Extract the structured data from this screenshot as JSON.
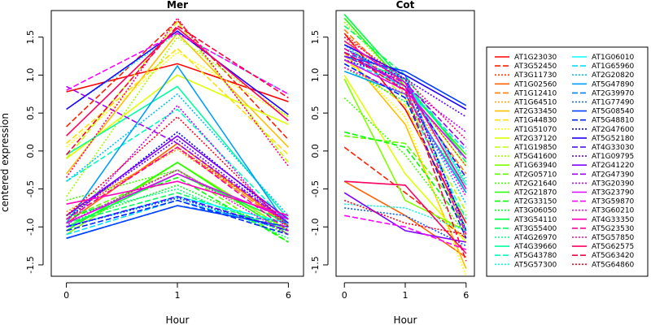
{
  "chart_data": {
    "type": "line",
    "ylabel": "centered expression",
    "xlabel": "Hour",
    "x": [
      "0",
      "1",
      "6"
    ],
    "yticks": [
      -1.5,
      -1.0,
      -0.5,
      0.0,
      0.5,
      1.0,
      1.5
    ],
    "ylim": [
      -1.65,
      1.85
    ],
    "grid": false,
    "legend_position": "right",
    "panels": [
      {
        "title": "Mer",
        "series": [
          {
            "name": "AT1G23030",
            "values": [
              0.78,
              1.15,
              0.65
            ]
          },
          {
            "name": "AT3G52450",
            "values": [
              0.32,
              1.72,
              0.15
            ]
          },
          {
            "name": "AT3G11730",
            "values": [
              -0.85,
              0.05,
              -0.95
            ]
          },
          {
            "name": "AT1G02560",
            "values": [
              -0.95,
              0.1,
              -0.98
            ]
          },
          {
            "name": "AT1G12410",
            "values": [
              -0.9,
              0.05,
              -1.0
            ]
          },
          {
            "name": "AT1G64510",
            "values": [
              -0.8,
              0.02,
              -0.98
            ]
          },
          {
            "name": "AT2G33450",
            "values": [
              -0.3,
              1.55,
              0.05
            ]
          },
          {
            "name": "AT1G44830",
            "values": [
              0.1,
              1.35,
              -0.05
            ]
          },
          {
            "name": "AT1G51070",
            "values": [
              0.05,
              1.3,
              0.45
            ]
          },
          {
            "name": "AT2G37120",
            "values": [
              -0.1,
              1.0,
              0.35
            ]
          },
          {
            "name": "AT1G19850",
            "values": [
              -0.1,
              1.7,
              -0.15
            ]
          },
          {
            "name": "AT5G41600",
            "values": [
              -0.6,
              1.5,
              0.45
            ]
          },
          {
            "name": "AT1G63940",
            "values": [
              -1.1,
              -0.15,
              -1.05
            ]
          },
          {
            "name": "AT2G05710",
            "values": [
              -0.9,
              -0.25,
              -1.2
            ]
          },
          {
            "name": "AT2G21640",
            "values": [
              -0.65,
              -0.25,
              -1.05
            ]
          },
          {
            "name": "AT2G21870",
            "values": [
              -1.05,
              -0.15,
              -1.1
            ]
          },
          {
            "name": "AT2G33150",
            "values": [
              -0.9,
              -0.35,
              -1.2
            ]
          },
          {
            "name": "AT3G06050",
            "values": [
              -0.95,
              -0.45,
              -1.1
            ]
          },
          {
            "name": "AT3G54110",
            "values": [
              -1.0,
              -0.3,
              -0.95
            ]
          },
          {
            "name": "AT3G55400",
            "values": [
              -0.95,
              -0.55,
              -1.05
            ]
          },
          {
            "name": "AT4G26970",
            "values": [
              -0.85,
              -0.5,
              -1.15
            ]
          },
          {
            "name": "AT4G39660",
            "values": [
              -0.05,
              0.85,
              -0.9
            ]
          },
          {
            "name": "AT5G43780",
            "values": [
              -0.4,
              0.55,
              -0.95
            ]
          },
          {
            "name": "AT5G57300",
            "values": [
              0.55,
              1.55,
              0.75
            ]
          },
          {
            "name": "AT1G06010",
            "values": [
              -1.0,
              -0.6,
              -0.95
            ]
          },
          {
            "name": "AT1G65960",
            "values": [
              -1.1,
              -0.65,
              -1.05
            ]
          },
          {
            "name": "AT2G20820",
            "values": [
              -0.4,
              0.75,
              -0.85
            ]
          },
          {
            "name": "AT5G47890",
            "values": [
              -0.95,
              1.12,
              -1.0
            ]
          },
          {
            "name": "AT2G39970",
            "values": [
              -1.15,
              -0.72,
              -0.95
            ]
          },
          {
            "name": "AT1G77490",
            "values": [
              -1.0,
              -0.62,
              -1.05
            ]
          },
          {
            "name": "AT5G08540",
            "values": [
              -1.15,
              -0.72,
              -1.0
            ]
          },
          {
            "name": "AT5G48810",
            "values": [
              -1.05,
              -0.65,
              -1.1
            ]
          },
          {
            "name": "AT2G47600",
            "values": [
              -0.9,
              0.25,
              -0.95
            ]
          },
          {
            "name": "AT5G52180",
            "values": [
              0.55,
              1.58,
              0.48
            ]
          },
          {
            "name": "AT4G33030",
            "values": [
              -1.0,
              -0.6,
              -1.05
            ]
          },
          {
            "name": "AT1G09795",
            "values": [
              -0.85,
              0.15,
              -0.95
            ]
          },
          {
            "name": "AT2G41220",
            "values": [
              -0.85,
              0.2,
              -0.9
            ]
          },
          {
            "name": "AT2G47390",
            "values": [
              0.85,
              0.1,
              -0.95
            ]
          },
          {
            "name": "AT3G20390",
            "values": [
              -1.0,
              0.6,
              -1.05
            ]
          },
          {
            "name": "AT3G23790",
            "values": [
              -0.95,
              -0.3,
              -0.9
            ]
          },
          {
            "name": "AT3G59870",
            "values": [
              0.8,
              1.55,
              0.75
            ]
          },
          {
            "name": "AT3G60210",
            "values": [
              -0.95,
              -0.25,
              -1.1
            ]
          },
          {
            "name": "AT4G33350",
            "values": [
              -0.7,
              -0.4,
              -0.85
            ]
          },
          {
            "name": "AT5G23530",
            "values": [
              -0.9,
              0.05,
              -1.05
            ]
          },
          {
            "name": "AT5G57850",
            "values": [
              -0.35,
              1.75,
              -0.2
            ]
          },
          {
            "name": "AT5G62575",
            "values": [
              0.2,
              1.62,
              0.4
            ]
          },
          {
            "name": "AT5G63420",
            "values": [
              -0.05,
              1.65,
              0.7
            ]
          },
          {
            "name": "AT5G64860",
            "values": [
              -0.85,
              0.45,
              -1.0
            ]
          }
        ]
      },
      {
        "title": "Cot",
        "series": [
          {
            "name": "AT1G23030",
            "values": [
              1.55,
              0.55,
              -0.95
            ]
          },
          {
            "name": "AT3G52450",
            "values": [
              0.05,
              -0.55,
              -1.15
            ]
          },
          {
            "name": "AT3G11730",
            "values": [
              1.55,
              0.85,
              -0.2
            ]
          },
          {
            "name": "AT1G02560",
            "values": [
              -0.4,
              -0.85,
              -1.4
            ]
          },
          {
            "name": "AT1G12410",
            "values": [
              1.6,
              0.8,
              -0.3
            ]
          },
          {
            "name": "AT1G64510",
            "values": [
              1.5,
              0.75,
              -0.4
            ]
          },
          {
            "name": "AT2G33450",
            "values": [
              1.3,
              0.35,
              -1.55
            ]
          },
          {
            "name": "AT1G44830",
            "values": [
              1.2,
              0.6,
              -1.05
            ]
          },
          {
            "name": "AT1G51070",
            "values": [
              1.25,
              0.45,
              -1.65
            ]
          },
          {
            "name": "AT2G37120",
            "values": [
              1.0,
              -0.3,
              -1.2
            ]
          },
          {
            "name": "AT1G19850",
            "values": [
              1.45,
              0.7,
              -0.8
            ]
          },
          {
            "name": "AT5G41600",
            "values": [
              1.7,
              0.85,
              -0.2
            ]
          },
          {
            "name": "AT1G63940",
            "values": [
              0.95,
              -0.65,
              -1.05
            ]
          },
          {
            "name": "AT2G05710",
            "values": [
              0.2,
              0.1,
              -0.85
            ]
          },
          {
            "name": "AT2G21640",
            "values": [
              0.7,
              -0.05,
              -1.1
            ]
          },
          {
            "name": "AT2G21870",
            "values": [
              1.75,
              0.85,
              -0.05
            ]
          },
          {
            "name": "AT2G33150",
            "values": [
              0.25,
              0.05,
              -1.0
            ]
          },
          {
            "name": "AT3G06050",
            "values": [
              1.1,
              0.65,
              -0.45
            ]
          },
          {
            "name": "AT3G54110",
            "values": [
              1.8,
              0.9,
              -0.1
            ]
          },
          {
            "name": "AT3G55400",
            "values": [
              1.65,
              1.0,
              -0.15
            ]
          },
          {
            "name": "AT4G26970",
            "values": [
              1.45,
              0.9,
              -0.4
            ]
          },
          {
            "name": "AT4G39660",
            "values": [
              1.25,
              0.95,
              -0.55
            ]
          },
          {
            "name": "AT5G43780",
            "values": [
              1.15,
              0.7,
              -0.9
            ]
          },
          {
            "name": "AT5G57300",
            "values": [
              -0.7,
              -0.75,
              -1.05
            ]
          },
          {
            "name": "AT1G06010",
            "values": [
              1.35,
              0.95,
              -0.45
            ]
          },
          {
            "name": "AT1G65960",
            "values": [
              1.2,
              0.85,
              0.0
            ]
          },
          {
            "name": "AT2G20820",
            "values": [
              1.4,
              0.8,
              -0.7
            ]
          },
          {
            "name": "AT5G47890",
            "values": [
              1.05,
              0.75,
              -0.55
            ]
          },
          {
            "name": "AT2G39970",
            "values": [
              1.3,
              1.0,
              -1.05
            ]
          },
          {
            "name": "AT1G77490",
            "values": [
              -0.75,
              -0.85,
              -1.25
            ]
          },
          {
            "name": "AT5G08540",
            "values": [
              1.25,
              1.05,
              0.6
            ]
          },
          {
            "name": "AT5G48810",
            "values": [
              1.15,
              0.7,
              -1.15
            ]
          },
          {
            "name": "AT2G47600",
            "values": [
              1.2,
              0.95,
              -1.05
            ]
          },
          {
            "name": "AT5G52180",
            "values": [
              1.4,
              1.0,
              0.55
            ]
          },
          {
            "name": "AT4G33030",
            "values": [
              1.3,
              0.85,
              -0.35
            ]
          },
          {
            "name": "AT1G09795",
            "values": [
              1.35,
              0.95,
              0.45
            ]
          },
          {
            "name": "AT2G41220",
            "values": [
              -0.55,
              -1.05,
              -1.2
            ]
          },
          {
            "name": "AT2G47390",
            "values": [
              1.25,
              0.9,
              0.05
            ]
          },
          {
            "name": "AT3G20390",
            "values": [
              1.3,
              0.85,
              0.25
            ]
          },
          {
            "name": "AT3G23790",
            "values": [
              1.2,
              0.8,
              -0.1
            ]
          },
          {
            "name": "AT3G59870",
            "values": [
              -0.85,
              -1.0,
              -1.3
            ]
          },
          {
            "name": "AT3G60210",
            "values": [
              1.1,
              0.75,
              -0.6
            ]
          },
          {
            "name": "AT4G33350",
            "values": [
              1.45,
              0.9,
              -0.5
            ]
          },
          {
            "name": "AT5G23530",
            "values": [
              1.35,
              0.85,
              -1.1
            ]
          },
          {
            "name": "AT5G57850",
            "values": [
              1.5,
              0.95,
              0.15
            ]
          },
          {
            "name": "AT5G62575",
            "values": [
              -0.4,
              -0.45,
              -1.35
            ]
          },
          {
            "name": "AT5G63420",
            "values": [
              1.3,
              0.8,
              -1.45
            ]
          },
          {
            "name": "AT5G64860",
            "values": [
              -0.65,
              -0.95,
              -1.1
            ]
          }
        ]
      }
    ],
    "legend_entries": [
      "AT1G23030",
      "AT3G52450",
      "AT3G11730",
      "AT1G02560",
      "AT1G12410",
      "AT1G64510",
      "AT2G33450",
      "AT1G44830",
      "AT1G51070",
      "AT2G37120",
      "AT1G19850",
      "AT5G41600",
      "AT1G63940",
      "AT2G05710",
      "AT2G21640",
      "AT2G21870",
      "AT2G33150",
      "AT3G06050",
      "AT3G54110",
      "AT3G55400",
      "AT4G26970",
      "AT4G39660",
      "AT5G43780",
      "AT5G57300",
      "AT1G06010",
      "AT1G65960",
      "AT2G20820",
      "AT5G47890",
      "AT2G39970",
      "AT1G77490",
      "AT5G08540",
      "AT5G48810",
      "AT2G47600",
      "AT5G52180",
      "AT4G33030",
      "AT1G09795",
      "AT2G41220",
      "AT2G47390",
      "AT3G20390",
      "AT3G23790",
      "AT3G59870",
      "AT3G60210",
      "AT4G33350",
      "AT5G23530",
      "AT5G57850",
      "AT5G62575",
      "AT5G63420",
      "AT5G64860"
    ],
    "line_styles": [
      "solid",
      "longdash",
      "dotted"
    ],
    "colors": [
      "#FF0000",
      "#FF2000",
      "#FF4000",
      "#FF6000",
      "#FF8000",
      "#FF9F00",
      "#FFBF00",
      "#FFDF00",
      "#FFFF00",
      "#DFFF00",
      "#BFFF00",
      "#9FFF00",
      "#80FF00",
      "#60FF00",
      "#40FF00",
      "#20FF00",
      "#00FF00",
      "#00FF20",
      "#00FF40",
      "#00FF60",
      "#00FF80",
      "#00FF9F",
      "#00FFBF",
      "#00FFDF",
      "#00FFFF",
      "#00DFFF",
      "#00BFFF",
      "#009FFF",
      "#0080FF",
      "#0060FF",
      "#0040FF",
      "#0020FF",
      "#0000FF",
      "#2000FF",
      "#4000FF",
      "#6000FF",
      "#8000FF",
      "#9F00FF",
      "#BF00FF",
      "#DF00FF",
      "#FF00FF",
      "#FF00DF",
      "#FF00BF",
      "#FF009F",
      "#FF0080",
      "#FF0060",
      "#FF0040",
      "#FF0020"
    ]
  }
}
